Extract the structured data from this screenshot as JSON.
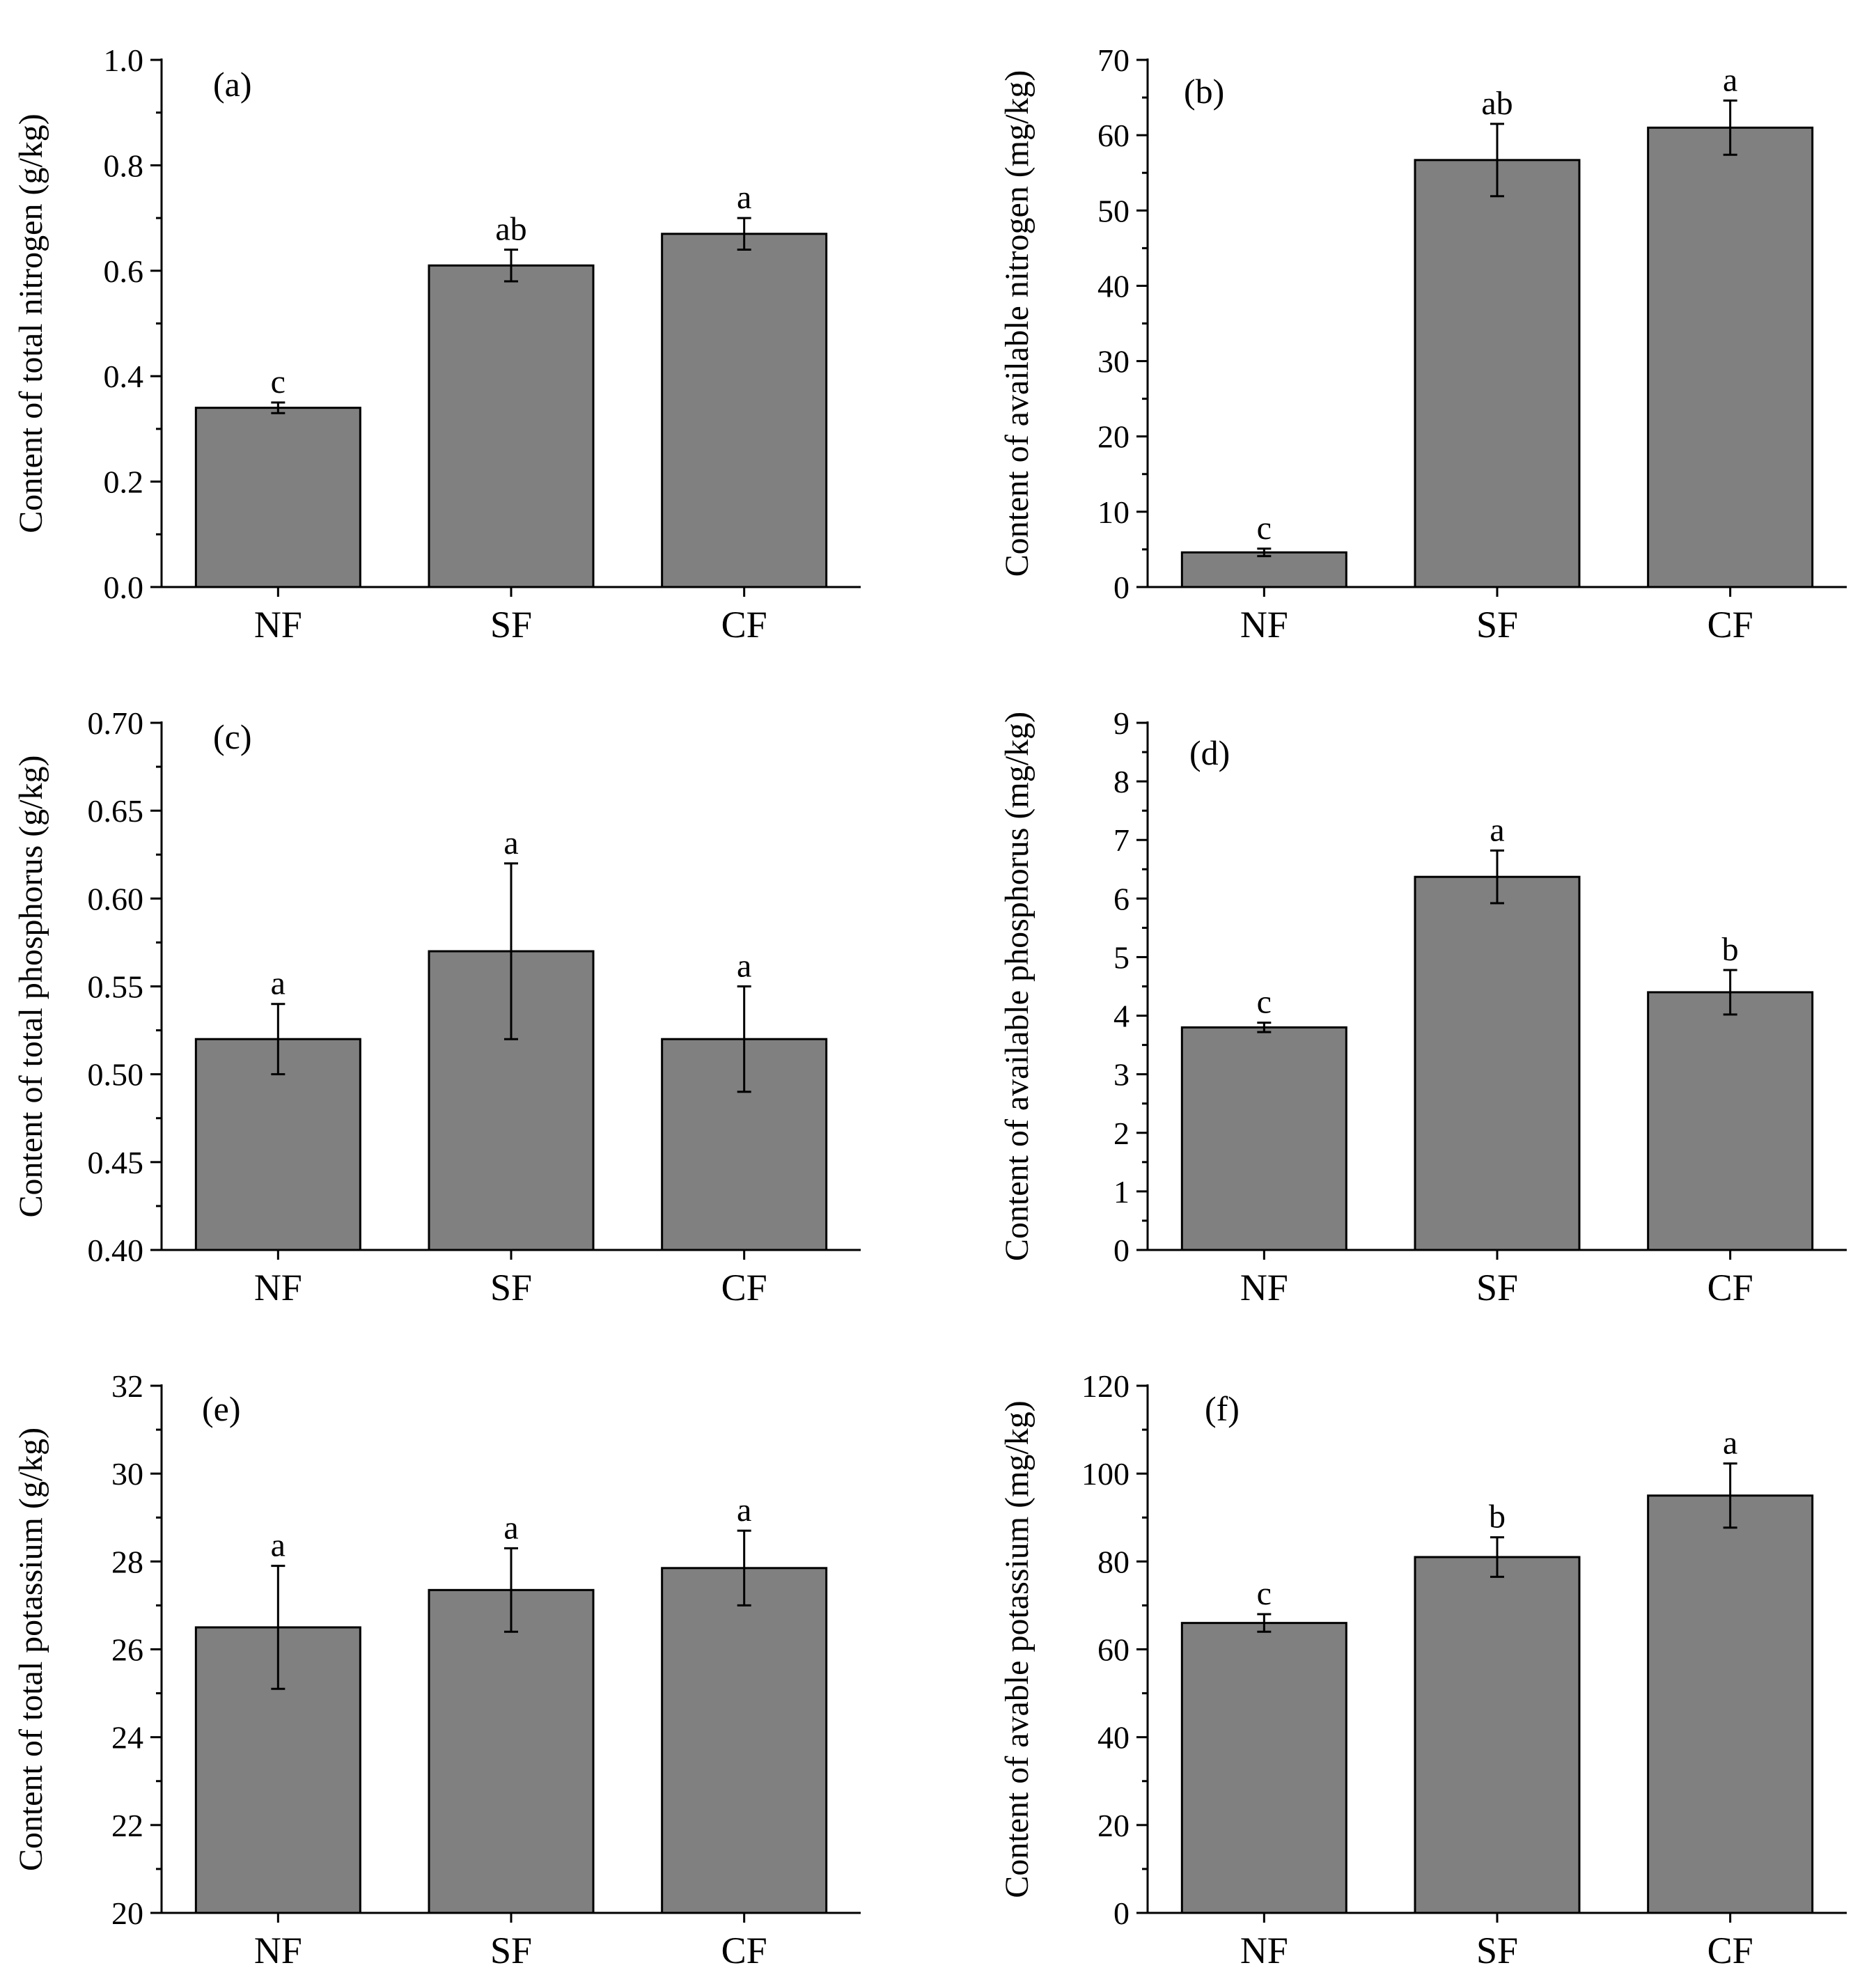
{
  "chart_data": [
    {
      "type": "bar",
      "panel_label": "(a)",
      "ylabel": "Content of total nitrogen (g/kg)",
      "categories": [
        "NF",
        "SF",
        "CF"
      ],
      "values": [
        0.34,
        0.61,
        0.67
      ],
      "errors": [
        0.01,
        0.03,
        0.03
      ],
      "significance": [
        "c",
        "ab",
        "a"
      ],
      "ylim": [
        0.0,
        1.0
      ],
      "yticks": [
        "0.0",
        "0.2",
        "0.4",
        "0.6",
        "0.8",
        "1.0"
      ],
      "bar_color": "#808080"
    },
    {
      "type": "bar",
      "panel_label": "(b)",
      "ylabel": "Content of available nitrogen (mg/kg)",
      "categories": [
        "NF",
        "SF",
        "CF"
      ],
      "values": [
        4.6,
        56.7,
        61.0
      ],
      "errors": [
        0.5,
        4.8,
        3.6
      ],
      "significance": [
        "c",
        "ab",
        "a"
      ],
      "ylim": [
        0,
        70
      ],
      "yticks": [
        "0",
        "10",
        "20",
        "30",
        "40",
        "50",
        "60",
        "70"
      ],
      "bar_color": "#808080"
    },
    {
      "type": "bar",
      "panel_label": "(c)",
      "ylabel": "Content of total phosphorus (g/kg)",
      "categories": [
        "NF",
        "SF",
        "CF"
      ],
      "values": [
        0.52,
        0.57,
        0.52
      ],
      "errors": [
        0.02,
        0.05,
        0.03
      ],
      "significance": [
        "a",
        "a",
        "a"
      ],
      "ylim": [
        0.4,
        0.7
      ],
      "yticks": [
        "0.40",
        "0.45",
        "0.50",
        "0.55",
        "0.60",
        "0.65",
        "0.70"
      ],
      "bar_color": "#808080"
    },
    {
      "type": "bar",
      "panel_label": "(d)",
      "ylabel": "Content of available phosphorus (mg/kg)",
      "categories": [
        "NF",
        "SF",
        "CF"
      ],
      "values": [
        3.8,
        6.37,
        4.4
      ],
      "errors": [
        0.08,
        0.45,
        0.38
      ],
      "significance": [
        "c",
        "a",
        "b"
      ],
      "ylim": [
        0,
        9
      ],
      "yticks": [
        "0",
        "1",
        "2",
        "3",
        "4",
        "5",
        "6",
        "7",
        "8",
        "9"
      ],
      "bar_color": "#808080"
    },
    {
      "type": "bar",
      "panel_label": "(e)",
      "ylabel": "Content of total potassium (g/kg)",
      "categories": [
        "NF",
        "SF",
        "CF"
      ],
      "values": [
        26.5,
        27.35,
        27.85
      ],
      "errors": [
        1.4,
        0.95,
        0.85
      ],
      "significance": [
        "a",
        "a",
        "a"
      ],
      "ylim": [
        20,
        32
      ],
      "yticks": [
        "20",
        "22",
        "24",
        "26",
        "28",
        "30",
        "32"
      ],
      "bar_color": "#808080"
    },
    {
      "type": "bar",
      "panel_label": "(f)",
      "ylabel": "Content of avable potassium (mg/kg)",
      "categories": [
        "NF",
        "SF",
        "CF"
      ],
      "values": [
        66,
        81,
        95
      ],
      "errors": [
        2,
        4.5,
        7.3
      ],
      "significance": [
        "c",
        "b",
        "a"
      ],
      "ylim": [
        0,
        120
      ],
      "yticks": [
        "0",
        "20",
        "40",
        "60",
        "80",
        "100",
        "120"
      ],
      "bar_color": "#808080"
    }
  ]
}
